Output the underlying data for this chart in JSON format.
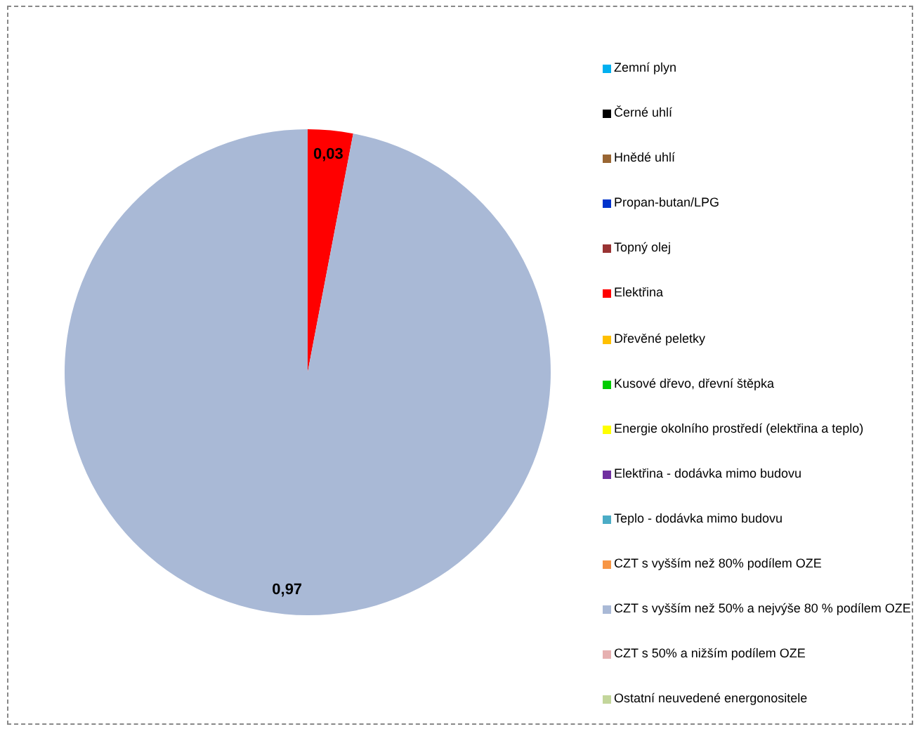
{
  "chart_data": {
    "type": "pie",
    "legend": "right",
    "categories": [
      "Zemní plyn",
      "Černé uhlí",
      "Hnědé uhlí",
      "Propan-butan/LPG",
      "Topný olej",
      "Elektřina",
      "Dřevěné peletky",
      "Kusové dřevo, dřevní štěpka",
      "Energie okolního prostředí (elektřina a teplo)",
      "Elektřina - dodávka mimo budovu",
      "Teplo - dodávka mimo budovu",
      "CZT s vyšším než 80% podílem OZE",
      "CZT s vyšším než 50% a nejvýše 80 % podílem OZE",
      "CZT s 50% a nižším podílem OZE",
      "Ostatní neuvedené energonositele"
    ],
    "values": [
      0,
      0,
      0,
      0,
      0,
      0.03,
      0,
      0,
      0,
      0,
      0,
      0,
      0.97,
      0,
      0
    ],
    "value_labels": [
      null,
      null,
      null,
      null,
      null,
      "0,03",
      null,
      null,
      null,
      null,
      null,
      null,
      "0,97",
      null,
      null
    ],
    "colors": [
      "#00b0f0",
      "#000000",
      "#996633",
      "#0033cc",
      "#993333",
      "#ff0000",
      "#ffc000",
      "#00cc00",
      "#ffff00",
      "#7030a0",
      "#4bacc6",
      "#f79646",
      "#a9b9d6",
      "#e6b0b0",
      "#c3d69b"
    ]
  }
}
